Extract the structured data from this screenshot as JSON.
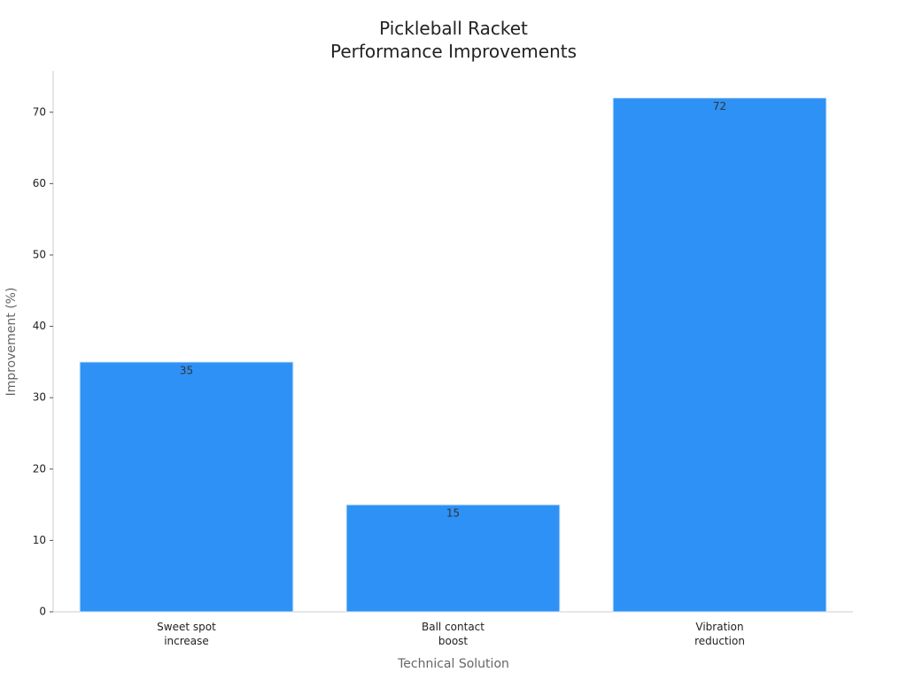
{
  "chart_data": {
    "type": "bar",
    "title": "Pickleball Racket\nPerformance Improvements",
    "x_label": "Technical Solution",
    "y_label": "Improvement (%)",
    "categories": [
      "Sweet spot\nincrease",
      "Ball contact\nboost",
      "Vibration\nreduction"
    ],
    "values": [
      35,
      15,
      72
    ],
    "color": "#2e91f5",
    "ylim": [
      0,
      75.8
    ],
    "yticks": [
      0,
      10,
      20,
      30,
      40,
      50,
      60,
      70
    ],
    "grid": false
  }
}
